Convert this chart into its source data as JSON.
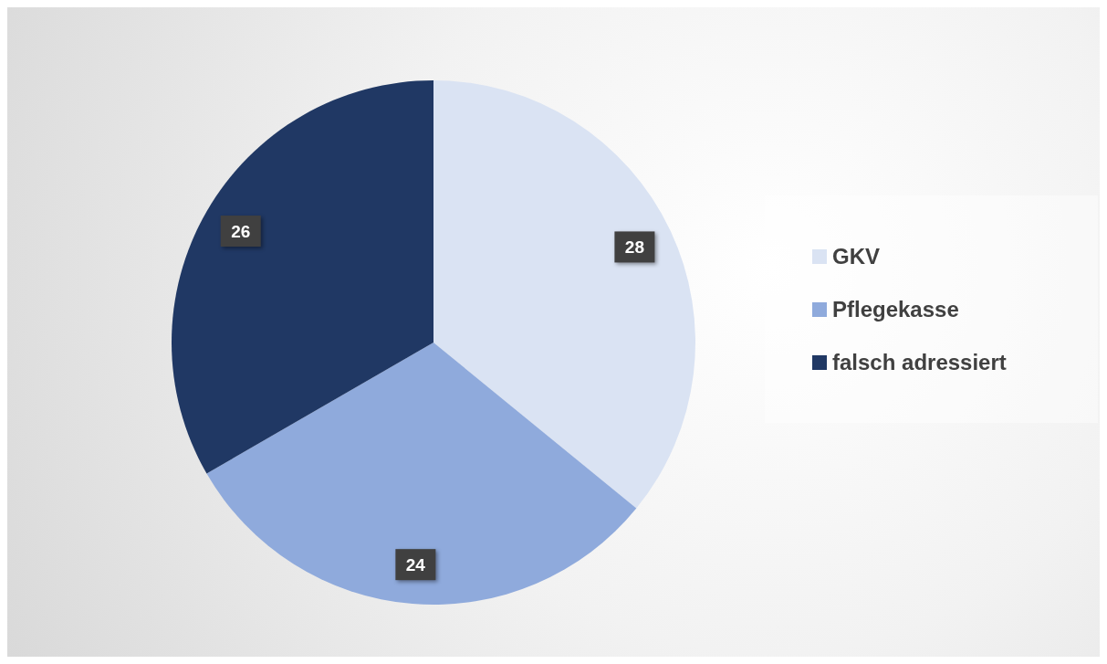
{
  "chart_data": {
    "type": "pie",
    "categories": [
      "GKV",
      "Pflegekasse",
      "falsch adressiert"
    ],
    "values": [
      28,
      24,
      26
    ],
    "colors": [
      "#dae3f3",
      "#8faadc",
      "#203864"
    ],
    "data_labels": true,
    "legend": "right"
  }
}
